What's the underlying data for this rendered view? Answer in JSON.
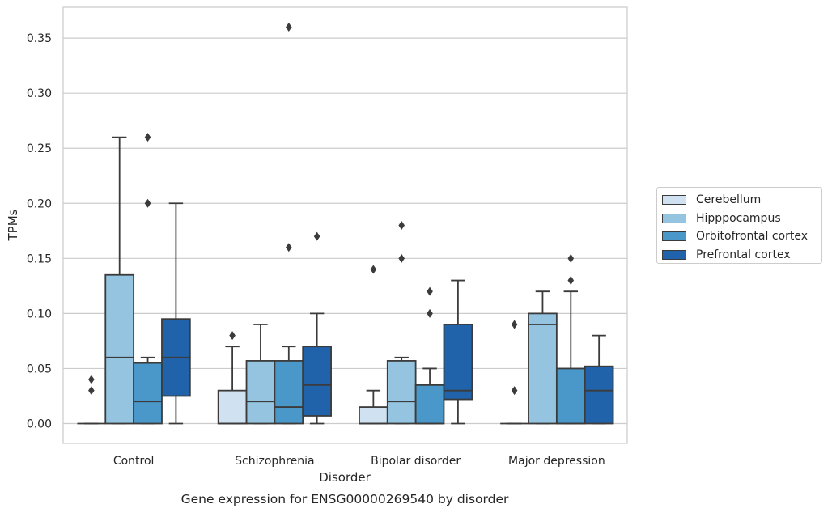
{
  "chart_data": {
    "type": "box",
    "title": "Gene expression for ENSG00000269540 by disorder",
    "xlabel": "Disorder",
    "ylabel": "TPMs",
    "ylim": [
      -0.018,
      0.378
    ],
    "yticks": [
      0.0,
      0.05,
      0.1,
      0.15,
      0.2,
      0.25,
      0.3,
      0.35
    ],
    "ytick_labels": [
      "0.00",
      "0.05",
      "0.10",
      "0.15",
      "0.20",
      "0.25",
      "0.30",
      "0.35"
    ],
    "grid": "horizontal",
    "legend_position": "right",
    "categories": [
      "Control",
      "Schizophrenia",
      "Bipolar disorder",
      "Major depression"
    ],
    "series": [
      {
        "name": "Cerebellum",
        "color": "#d0e1f2",
        "boxes": [
          {
            "q1": 0.0,
            "median": 0.0,
            "q3": 0.0,
            "whisker_low": 0.0,
            "whisker_high": 0.0,
            "outliers": [
              0.03,
              0.04
            ]
          },
          {
            "q1": 0.0,
            "median": 0.0,
            "q3": 0.03,
            "whisker_low": 0.0,
            "whisker_high": 0.07,
            "outliers": [
              0.08
            ]
          },
          {
            "q1": 0.0,
            "median": 0.0,
            "q3": 0.015,
            "whisker_low": 0.0,
            "whisker_high": 0.03,
            "outliers": [
              0.14
            ]
          },
          {
            "q1": 0.0,
            "median": 0.0,
            "q3": 0.0,
            "whisker_low": 0.0,
            "whisker_high": 0.0,
            "outliers": [
              0.03,
              0.09
            ]
          }
        ]
      },
      {
        "name": "Hipppocampus",
        "color": "#94c4df",
        "boxes": [
          {
            "q1": 0.0,
            "median": 0.06,
            "q3": 0.135,
            "whisker_low": 0.0,
            "whisker_high": 0.26,
            "outliers": []
          },
          {
            "q1": 0.0,
            "median": 0.02,
            "q3": 0.057,
            "whisker_low": 0.0,
            "whisker_high": 0.09,
            "outliers": []
          },
          {
            "q1": 0.0,
            "median": 0.02,
            "q3": 0.057,
            "whisker_low": 0.0,
            "whisker_high": 0.06,
            "outliers": [
              0.15,
              0.18
            ]
          },
          {
            "q1": 0.0,
            "median": 0.09,
            "q3": 0.1,
            "whisker_low": 0.0,
            "whisker_high": 0.12,
            "outliers": []
          }
        ]
      },
      {
        "name": "Orbitofrontal cortex",
        "color": "#4a98c9",
        "boxes": [
          {
            "q1": 0.0,
            "median": 0.02,
            "q3": 0.055,
            "whisker_low": 0.0,
            "whisker_high": 0.06,
            "outliers": [
              0.2,
              0.26
            ]
          },
          {
            "q1": 0.0,
            "median": 0.015,
            "q3": 0.057,
            "whisker_low": 0.0,
            "whisker_high": 0.07,
            "outliers": [
              0.16,
              0.36
            ]
          },
          {
            "q1": 0.0,
            "median": 0.0,
            "q3": 0.035,
            "whisker_low": 0.0,
            "whisker_high": 0.05,
            "outliers": [
              0.1,
              0.12
            ]
          },
          {
            "q1": 0.0,
            "median": 0.0,
            "q3": 0.05,
            "whisker_low": 0.0,
            "whisker_high": 0.12,
            "outliers": [
              0.13,
              0.15
            ]
          }
        ]
      },
      {
        "name": "Prefrontal cortex",
        "color": "#2163aa",
        "boxes": [
          {
            "q1": 0.025,
            "median": 0.06,
            "q3": 0.095,
            "whisker_low": 0.0,
            "whisker_high": 0.2,
            "outliers": []
          },
          {
            "q1": 0.007,
            "median": 0.035,
            "q3": 0.07,
            "whisker_low": 0.0,
            "whisker_high": 0.1,
            "outliers": [
              0.17
            ]
          },
          {
            "q1": 0.022,
            "median": 0.03,
            "q3": 0.09,
            "whisker_low": 0.0,
            "whisker_high": 0.13,
            "outliers": []
          },
          {
            "q1": 0.0,
            "median": 0.03,
            "q3": 0.052,
            "whisker_low": 0.0,
            "whisker_high": 0.08,
            "outliers": []
          }
        ]
      }
    ]
  }
}
